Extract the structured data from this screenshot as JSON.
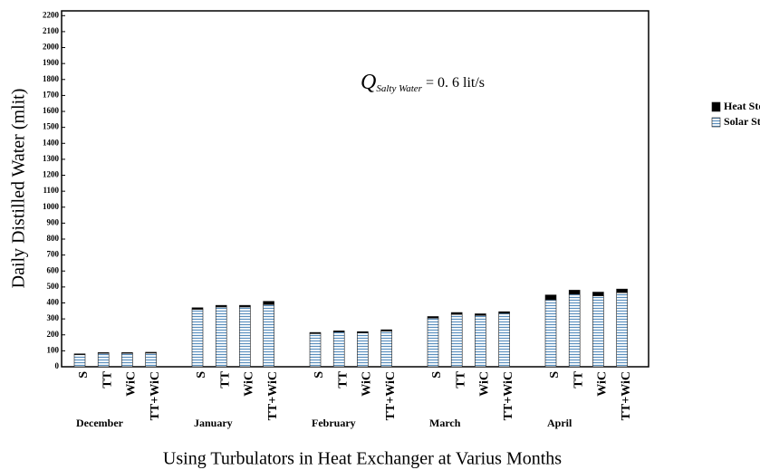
{
  "chart_data": {
    "type": "stacked_bar",
    "y_label": "Daily Distilled Water (mlit)",
    "x_label": "Using Turbulators in Heat Exchanger at Varius Months",
    "annotation": {
      "symbol": "Q",
      "subscript": "Salty Water",
      "text": "= 0. 6 lit/s"
    },
    "groups": [
      "December",
      "January",
      "February",
      "March",
      "April"
    ],
    "categories": [
      "S",
      "TT",
      "WiC",
      "TT+WiC",
      "S",
      "TT",
      "WiC",
      "TT+WiC",
      "S",
      "TT",
      "WiC",
      "TT+WiC",
      "S",
      "TT",
      "WiC",
      "TT+WiC",
      "S",
      "TT",
      "WiC",
      "TT+WiC"
    ],
    "series": [
      {
        "name": "Solar Still",
        "color": "#5a8fbf",
        "pattern": "horizontal-stripes",
        "values": [
          76,
          84,
          84,
          86,
          360,
          375,
          375,
          390,
          208,
          218,
          213,
          224,
          305,
          328,
          322,
          335,
          420,
          455,
          445,
          465
        ]
      },
      {
        "name": "Heat Storage",
        "color": "#000000",
        "values": [
          5,
          5,
          5,
          5,
          10,
          10,
          10,
          20,
          7,
          7,
          7,
          8,
          10,
          12,
          10,
          10,
          30,
          25,
          23,
          22
        ]
      }
    ],
    "ylim": [
      0,
      2230
    ],
    "yticks": [
      0,
      100,
      200,
      300,
      400,
      500,
      600,
      700,
      800,
      900,
      1000,
      1100,
      1200,
      1300,
      1400,
      1500,
      1600,
      1700,
      1800,
      1900,
      2000,
      2100,
      2200
    ],
    "legend": "right"
  }
}
